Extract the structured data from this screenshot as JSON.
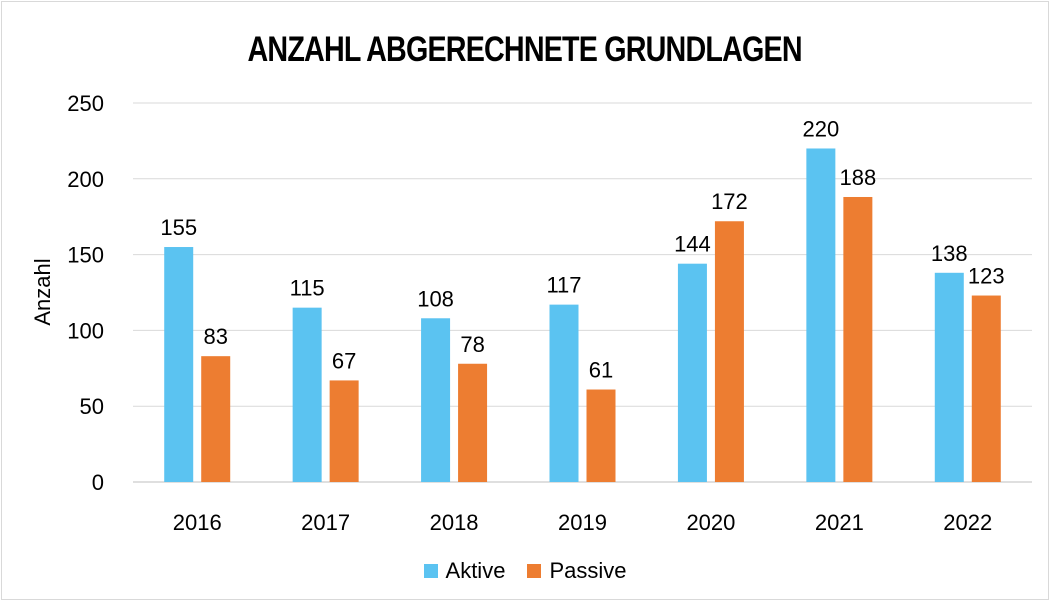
{
  "chart_data": {
    "type": "bar",
    "title": "ANZAHL ABGERECHNETE GRUNDLAGEN",
    "xlabel": "",
    "ylabel": "Anzahl",
    "categories": [
      "2016",
      "2017",
      "2018",
      "2019",
      "2020",
      "2021",
      "2022"
    ],
    "series": [
      {
        "name": "Aktive",
        "values": [
          155,
          115,
          108,
          117,
          144,
          220,
          138
        ],
        "color": "#5bc3f1"
      },
      {
        "name": "Passive",
        "values": [
          83,
          67,
          78,
          61,
          172,
          188,
          123
        ],
        "color": "#ed7d31"
      }
    ],
    "ylim": [
      0,
      250
    ],
    "yticks": [
      0,
      50,
      100,
      150,
      200,
      250
    ],
    "grid": true,
    "legend_position": "bottom"
  }
}
